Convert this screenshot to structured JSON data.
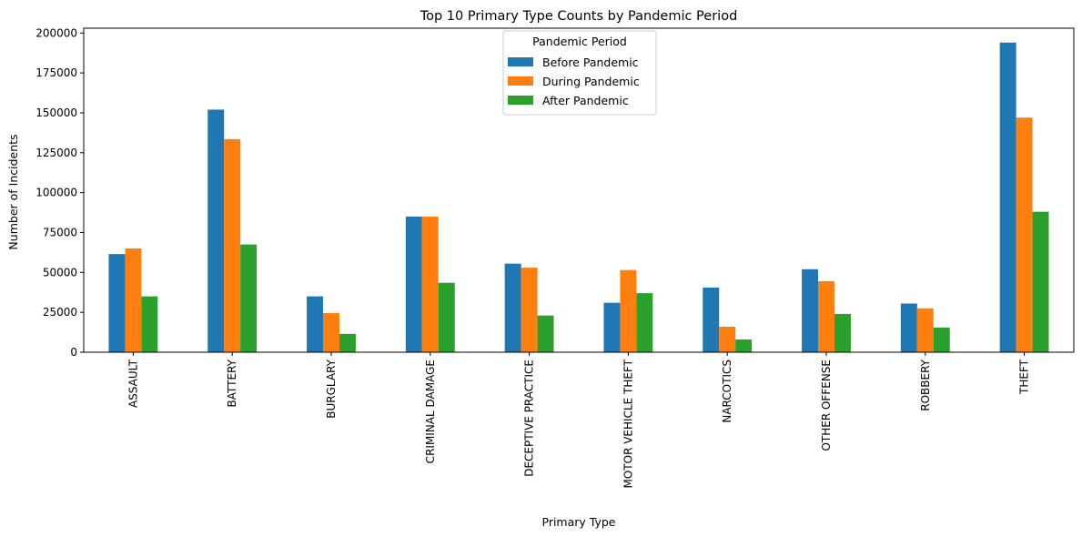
{
  "chart_data": {
    "type": "bar",
    "title": "Top 10 Primary Type Counts by Pandemic Period",
    "xlabel": "Primary Type",
    "ylabel": "Number of Incidents",
    "ylim": [
      0,
      203000
    ],
    "yticks": [
      0,
      25000,
      50000,
      75000,
      100000,
      125000,
      150000,
      175000,
      200000
    ],
    "grid": false,
    "legend": {
      "title": "Pandemic Period",
      "placement": "top-center"
    },
    "categories": [
      "ASSAULT",
      "BATTERY",
      "BURGLARY",
      "CRIMINAL DAMAGE",
      "DECEPTIVE PRACTICE",
      "MOTOR VEHICLE THEFT",
      "NARCOTICS",
      "OTHER OFFENSE",
      "ROBBERY",
      "THEFT"
    ],
    "series": [
      {
        "name": "Before Pandemic",
        "color": "#1f77b4",
        "values": [
          61500,
          152000,
          35000,
          85000,
          55500,
          31000,
          40500,
          52000,
          30500,
          194000
        ]
      },
      {
        "name": "During Pandemic",
        "color": "#ff7f0e",
        "values": [
          65000,
          133500,
          24500,
          85000,
          53000,
          51500,
          16000,
          44500,
          27500,
          147000
        ]
      },
      {
        "name": "After Pandemic",
        "color": "#2ca02c",
        "values": [
          35000,
          67500,
          11500,
          43500,
          23000,
          37000,
          8000,
          24000,
          15500,
          88000
        ]
      }
    ]
  }
}
